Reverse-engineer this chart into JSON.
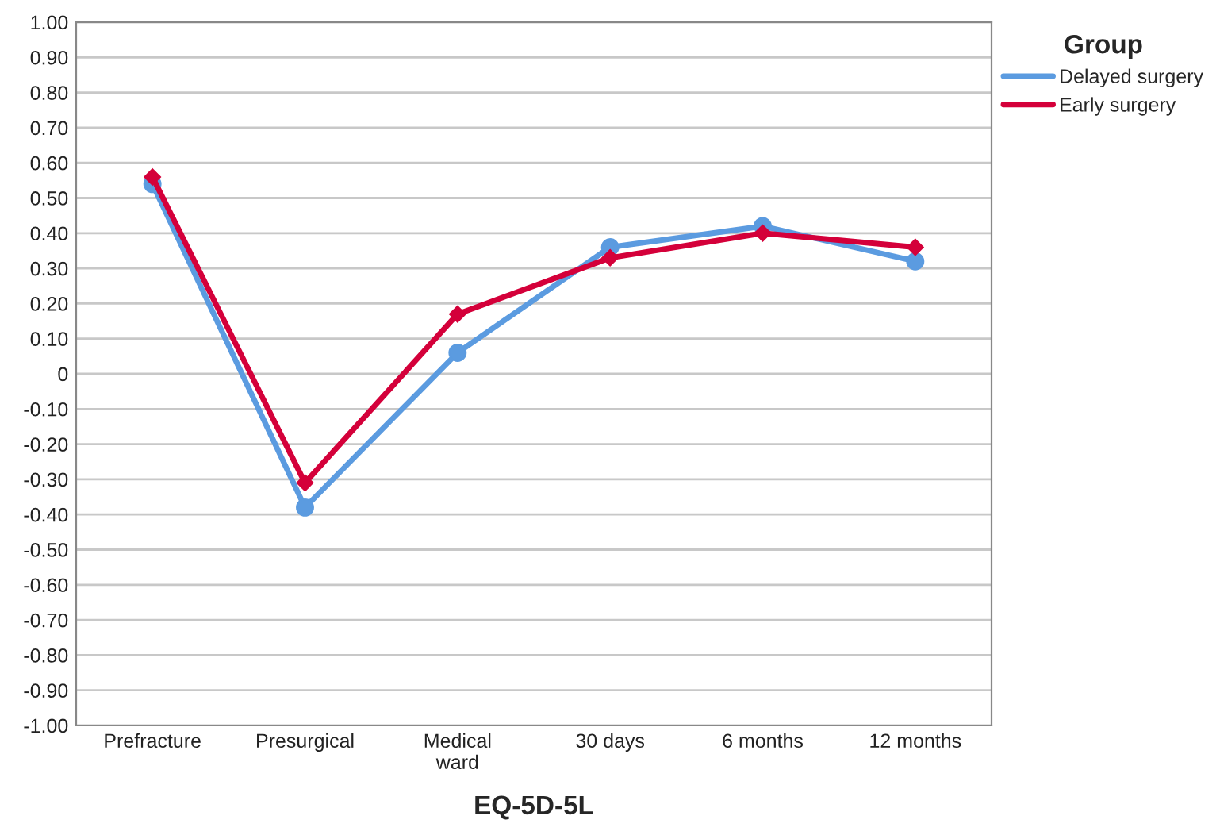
{
  "chart_data": {
    "type": "line",
    "xlabel": "EQ-5D-5L",
    "legend_title": "Group",
    "legend": "top right",
    "grid": "y",
    "categories": [
      "Prefracture",
      "Presurgical",
      "Medical\nward",
      "30 days",
      "6 months",
      "12 months"
    ],
    "series": [
      {
        "name": "Delayed surgery",
        "color": "#5b9be0",
        "marker": "circle",
        "values": [
          0.54,
          -0.38,
          0.06,
          0.36,
          0.42,
          0.32
        ]
      },
      {
        "name": "Early surgery",
        "color": "#d4003a",
        "marker": "diamond",
        "values": [
          0.56,
          -0.31,
          0.17,
          0.33,
          0.4,
          0.36
        ]
      }
    ],
    "ylim": [
      -1,
      1
    ],
    "yticks": [
      {
        "value": -1,
        "label": "-1.00"
      },
      {
        "value": -0.9,
        "label": "-0.90"
      },
      {
        "value": -0.8,
        "label": "-0.80"
      },
      {
        "value": -0.7,
        "label": "-0.70"
      },
      {
        "value": -0.6,
        "label": "-0.60"
      },
      {
        "value": -0.5,
        "label": "-0.50"
      },
      {
        "value": -0.4,
        "label": "-0.40"
      },
      {
        "value": -0.3,
        "label": "-0.30"
      },
      {
        "value": -0.2,
        "label": "-0.20"
      },
      {
        "value": -0.1,
        "label": "-0.10"
      },
      0,
      {
        "value": 0.1,
        "label": "0.10"
      },
      {
        "value": 0.2,
        "label": "0.20"
      },
      {
        "value": 0.3,
        "label": "0.30"
      },
      {
        "value": 0.4,
        "label": "0.40"
      },
      {
        "value": 0.5,
        "label": "0.50"
      },
      {
        "value": 0.6,
        "label": "0.60"
      },
      {
        "value": 0.7,
        "label": "0.70"
      },
      {
        "value": 0.8,
        "label": "0.80"
      },
      {
        "value": 0.9,
        "label": "0.90"
      },
      {
        "value": 1,
        "label": "1.00"
      }
    ],
    "line_style": "solid"
  }
}
